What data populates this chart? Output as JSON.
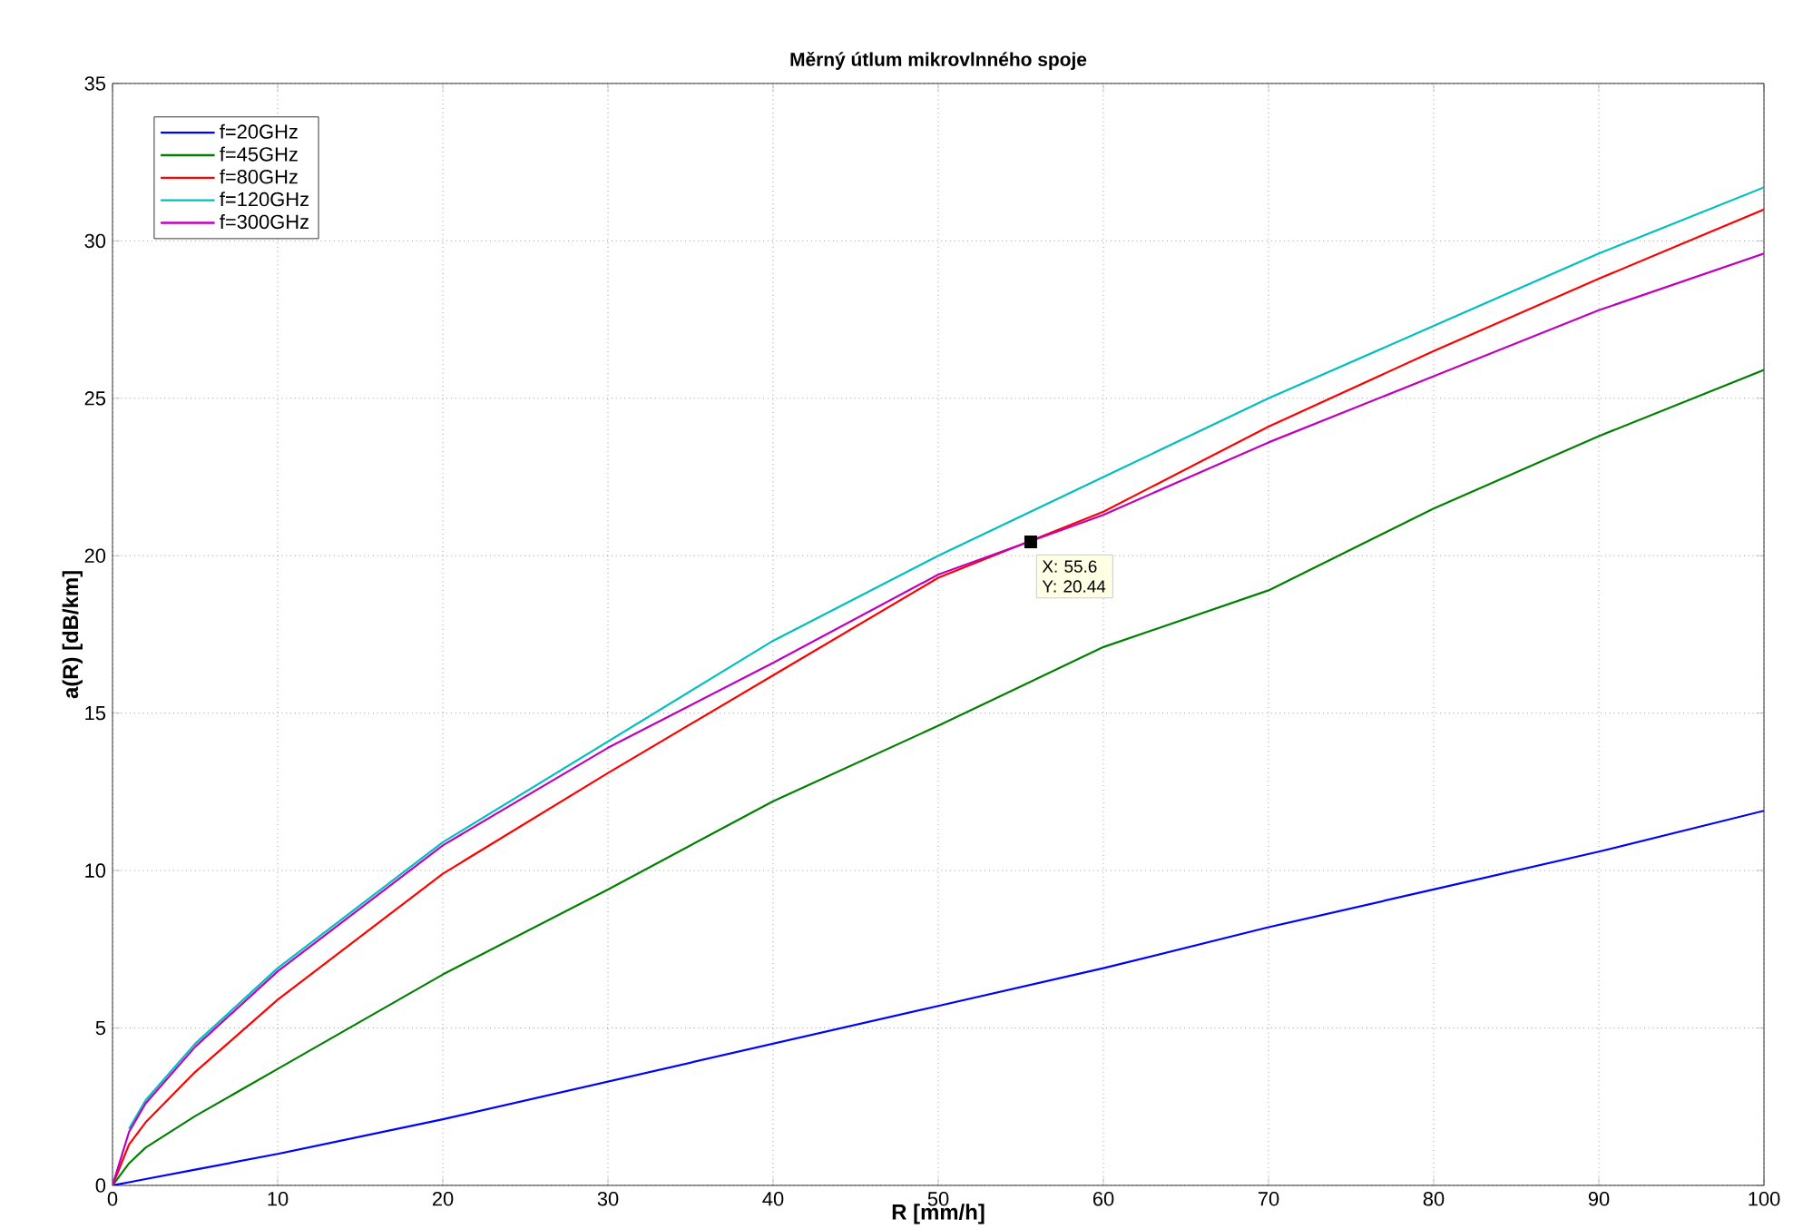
{
  "chart_data": {
    "type": "line",
    "title": "Měrný útlum mikrovlnného spoje",
    "xlabel": "R [mm/h]",
    "ylabel": "a(R) [dB/km]",
    "x": [
      0,
      1,
      2,
      5,
      10,
      20,
      30,
      40,
      50,
      60,
      70,
      80,
      90,
      100
    ],
    "series": [
      {
        "name": "f=20GHz",
        "color": "#0000ff",
        "values": [
          0,
          0.1,
          0.2,
          0.5,
          1.0,
          2.1,
          3.3,
          4.5,
          5.7,
          6.9,
          8.2,
          9.4,
          10.6,
          11.9
        ]
      },
      {
        "name": "f=45GHz",
        "color": "#008000",
        "values": [
          0,
          0.7,
          1.2,
          2.2,
          3.7,
          6.7,
          9.4,
          12.2,
          14.6,
          17.1,
          18.9,
          21.5,
          23.8,
          25.9
        ]
      },
      {
        "name": "f=80GHz",
        "color": "#ff0000",
        "values": [
          0,
          1.3,
          2.0,
          3.6,
          5.9,
          9.9,
          13.1,
          16.2,
          19.3,
          21.4,
          24.1,
          26.5,
          28.8,
          31.0
        ]
      },
      {
        "name": "f=120GHz",
        "color": "#00bfbf",
        "values": [
          null,
          1.8,
          2.7,
          4.5,
          6.9,
          10.9,
          14.1,
          17.3,
          20.0,
          22.5,
          25.0,
          27.3,
          29.6,
          31.7
        ]
      },
      {
        "name": "f=300GHz",
        "color": "#bf00bf",
        "values": [
          0,
          1.7,
          2.6,
          4.4,
          6.8,
          10.8,
          13.9,
          16.6,
          19.4,
          21.3,
          23.6,
          25.7,
          27.8,
          29.6
        ]
      }
    ],
    "xlim": [
      0,
      100
    ],
    "ylim": [
      0,
      35
    ],
    "xticks": [
      0,
      10,
      20,
      30,
      40,
      50,
      60,
      70,
      80,
      90,
      100
    ],
    "yticks": [
      0,
      5,
      10,
      15,
      20,
      25,
      30,
      35
    ],
    "grid": true,
    "legend": "top left",
    "marker": "none",
    "line_style": "solid",
    "annotations": [
      {
        "text": "X: 55.6 Y: 20.44",
        "x": 55.6,
        "y": 20.44
      }
    ]
  }
}
